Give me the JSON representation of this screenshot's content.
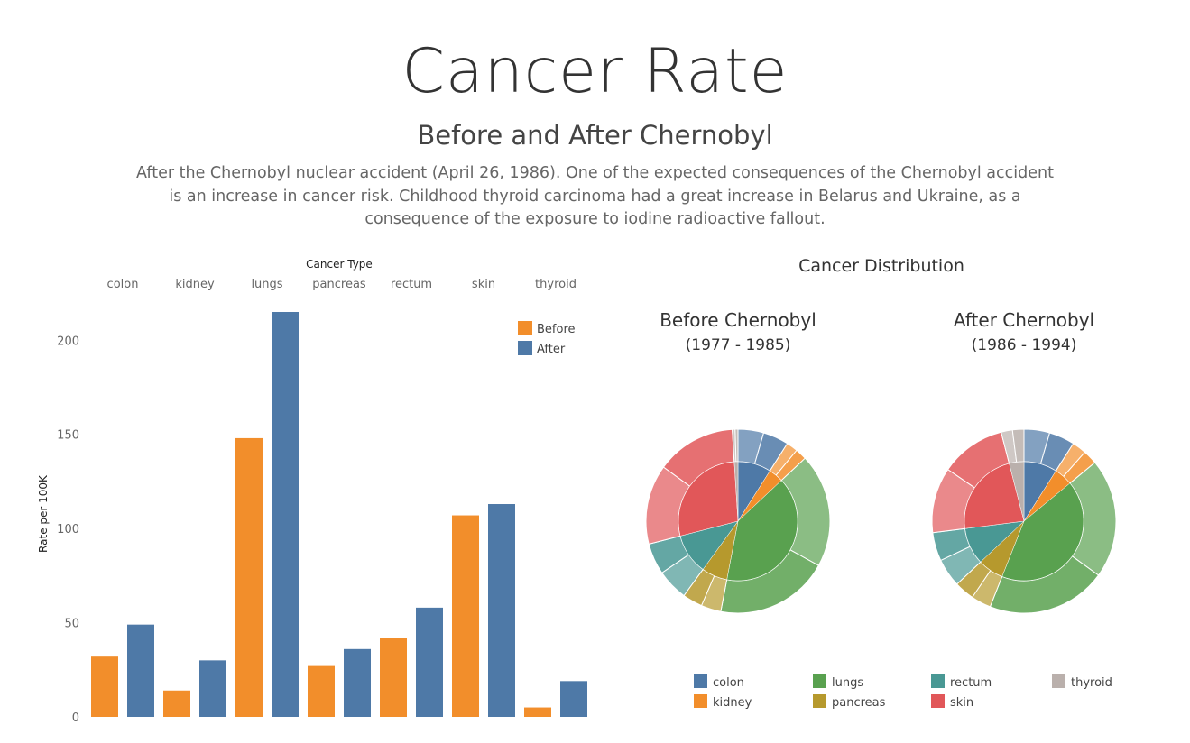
{
  "header": {
    "title": "Cancer Rate",
    "subtitle": "Before and After Chernobyl",
    "description": "After the Chernobyl nuclear accident (April 26, 1986). One of the expected consequences of the Chernobyl accident is an increase in cancer risk. Childhood thyroid carcinoma had a great increase in Belarus and Ukraine, as a consequence of the exposure to iodine radioactive fallout."
  },
  "colors": {
    "before": "#f28e2b",
    "after": "#4e79a7",
    "colon": "#4e79a7",
    "kidney": "#f28e2b",
    "lungs": "#59a14f",
    "pancreas": "#b6992d",
    "rectum": "#499894",
    "skin": "#e15759",
    "thyroid": "#bab0ac"
  },
  "chart_data": [
    {
      "type": "bar",
      "title": "Cancer Type",
      "xlabel": "Cancer Type",
      "ylabel": "Rate per 100K",
      "ylim": [
        0,
        215
      ],
      "yticks": [
        0,
        50,
        100,
        150,
        200
      ],
      "categories": [
        "colon",
        "kidney",
        "lungs",
        "pancreas",
        "rectum",
        "skin",
        "thyroid"
      ],
      "series": [
        {
          "name": "Before",
          "values": [
            32,
            14,
            148,
            27,
            42,
            107,
            5
          ]
        },
        {
          "name": "After",
          "values": [
            49,
            30,
            215,
            36,
            58,
            113,
            19
          ]
        }
      ],
      "legend": {
        "position": "top-right",
        "items": [
          "Before",
          "After"
        ]
      },
      "grid": false
    },
    {
      "type": "pie",
      "title": "Cancer Distribution",
      "charts": [
        {
          "title": "Before Chernobyl",
          "subtitle": "(1977 - 1985)",
          "slices": [
            {
              "label": "colon",
              "value": 9
            },
            {
              "label": "kidney",
              "value": 4
            },
            {
              "label": "lungs",
              "value": 40
            },
            {
              "label": "pancreas",
              "value": 7
            },
            {
              "label": "rectum",
              "value": 11
            },
            {
              "label": "skin",
              "value": 28
            },
            {
              "label": "thyroid",
              "value": 1
            }
          ]
        },
        {
          "title": "After Chernobyl",
          "subtitle": "(1986 - 1994)",
          "slices": [
            {
              "label": "colon",
              "value": 9
            },
            {
              "label": "kidney",
              "value": 5
            },
            {
              "label": "lungs",
              "value": 42
            },
            {
              "label": "pancreas",
              "value": 7
            },
            {
              "label": "rectum",
              "value": 10
            },
            {
              "label": "skin",
              "value": 23
            },
            {
              "label": "thyroid",
              "value": 4
            }
          ]
        }
      ],
      "legend": {
        "position": "bottom",
        "items": [
          "colon",
          "kidney",
          "lungs",
          "pancreas",
          "rectum",
          "skin",
          "thyroid"
        ]
      }
    }
  ]
}
